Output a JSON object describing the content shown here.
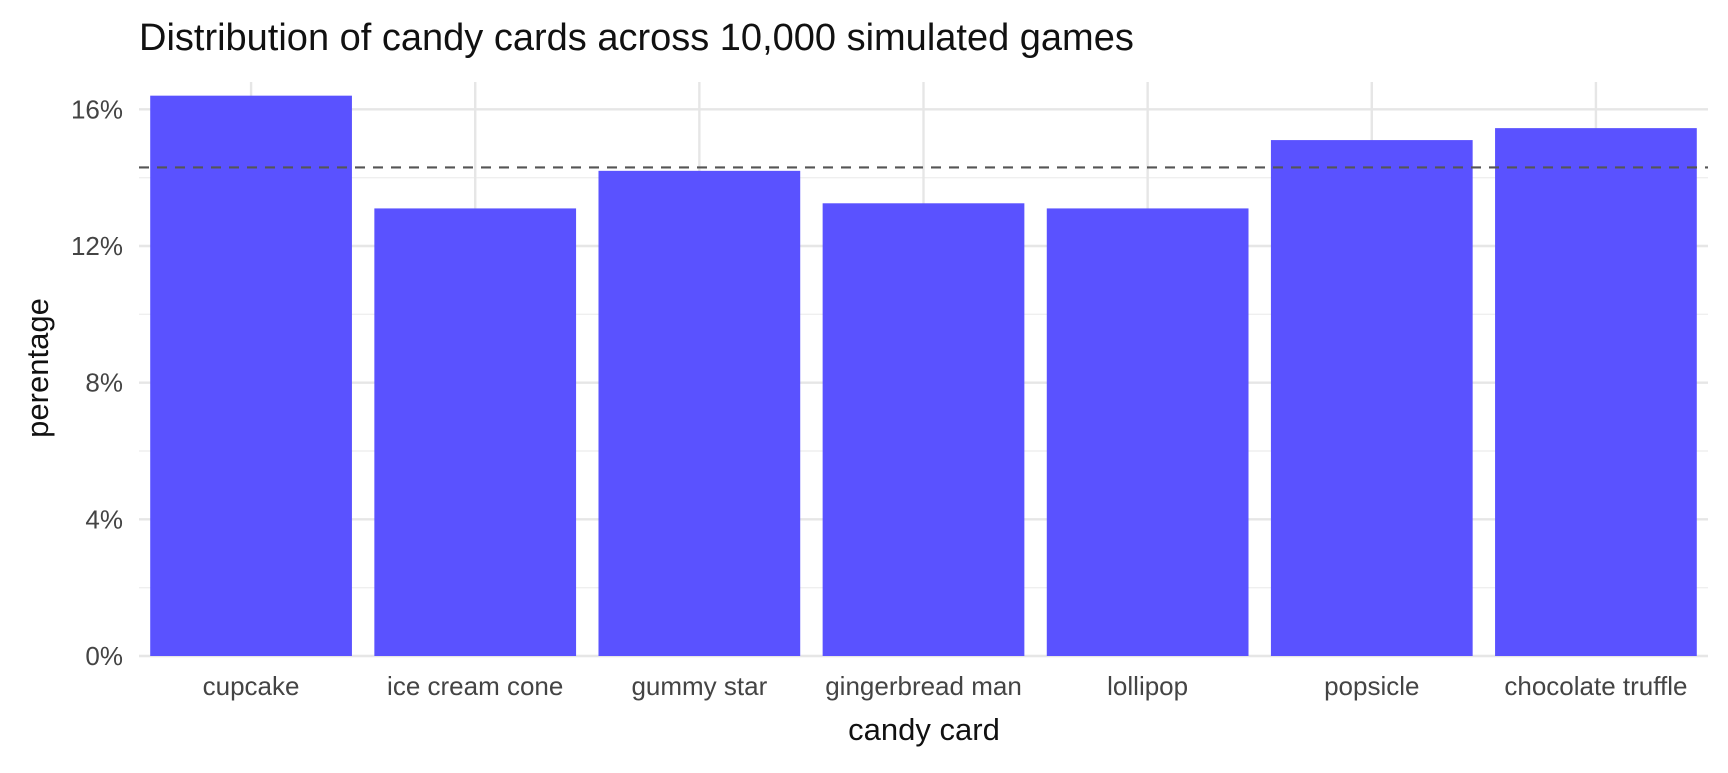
{
  "chart_data": {
    "type": "bar",
    "title": "Distribution of candy cards across 10,000 simulated games",
    "xlabel": "candy card",
    "ylabel": "perentage",
    "categories": [
      "cupcake",
      "ice cream cone",
      "gummy star",
      "gingerbread man",
      "lollipop",
      "popsicle",
      "chocolate truffle"
    ],
    "values": [
      16.4,
      13.1,
      14.2,
      13.25,
      13.1,
      15.1,
      15.45
    ],
    "ylim": [
      0,
      16.8
    ],
    "yticks": [
      0,
      4,
      8,
      12,
      16
    ],
    "ytick_labels": [
      "0%",
      "4%",
      "8%",
      "12%",
      "16%"
    ],
    "reference_line": {
      "value": 14.3,
      "style": "dashed"
    },
    "grid": true,
    "legend": "none",
    "colors": {
      "bar": "#5a52ff",
      "reference_line": "#555555",
      "grid": "#e6e6e6"
    }
  }
}
